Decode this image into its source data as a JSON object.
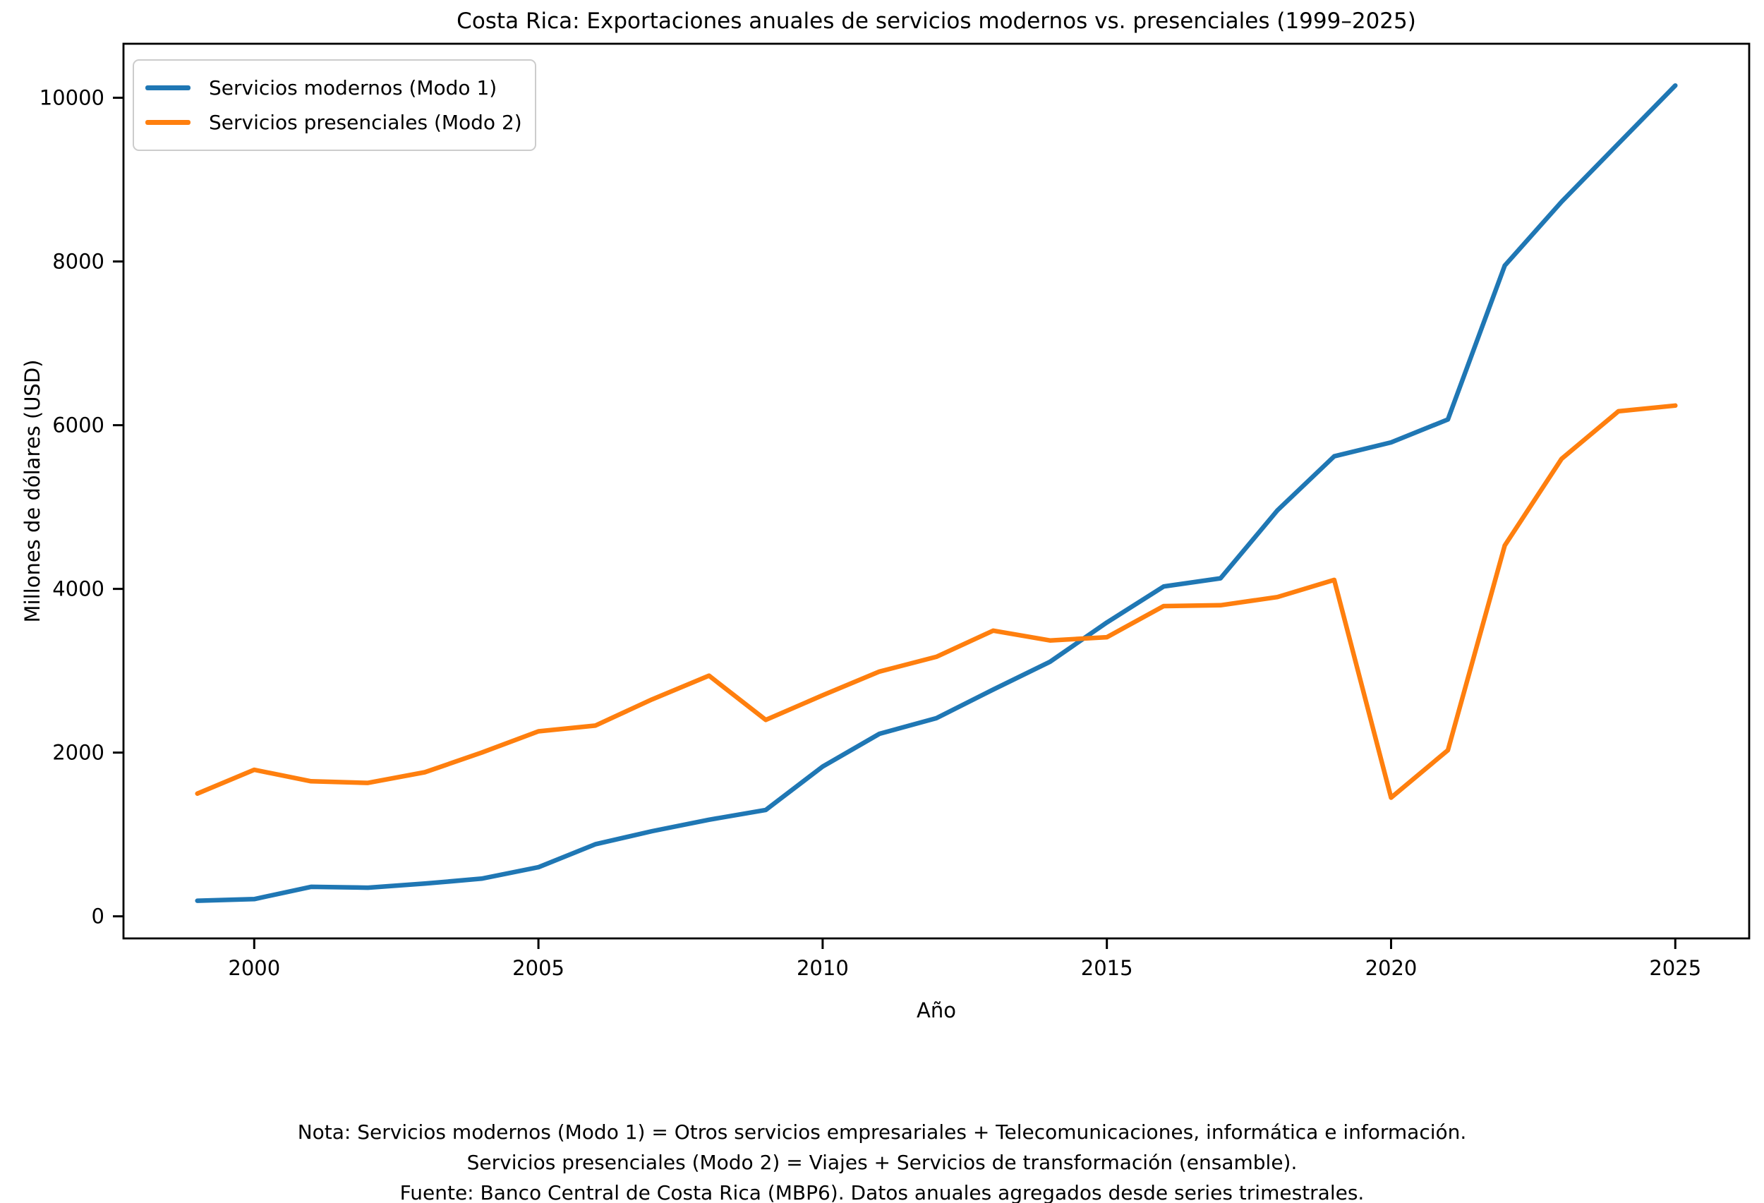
{
  "title": "Costa Rica: Exportaciones anuales de servicios modernos vs. presenciales (1999–2025)",
  "axes": {
    "xlabel": "Año",
    "ylabel": "Millones de dólares (USD)",
    "x_ticks": [
      2000,
      2005,
      2010,
      2015,
      2020,
      2025
    ],
    "y_ticks": [
      0,
      2000,
      4000,
      6000,
      8000,
      10000
    ]
  },
  "legend": {
    "position": "upper-left",
    "items": [
      {
        "label": "Servicios modernos (Modo 1)",
        "color": "#1f77b4"
      },
      {
        "label": "Servicios presenciales (Modo 2)",
        "color": "#ff7f0e"
      }
    ]
  },
  "chart_data": {
    "type": "line",
    "title": "Costa Rica: Exportaciones anuales de servicios modernos vs. presenciales (1999–2025)",
    "xlabel": "Año",
    "ylabel": "Millones de dólares (USD)",
    "x": [
      1999,
      2000,
      2001,
      2002,
      2003,
      2004,
      2005,
      2006,
      2007,
      2008,
      2009,
      2010,
      2011,
      2012,
      2013,
      2014,
      2015,
      2016,
      2017,
      2018,
      2019,
      2020,
      2021,
      2022,
      2023,
      2024,
      2025
    ],
    "series": [
      {
        "name": "Servicios modernos (Modo 1)",
        "color": "#1f77b4",
        "values": [
          190,
          210,
          360,
          350,
          400,
          460,
          600,
          880,
          1040,
          1180,
          1300,
          1830,
          2230,
          2420,
          2770,
          3110,
          3590,
          4030,
          4130,
          4960,
          5620,
          5790,
          6070,
          7950,
          8730,
          9440,
          10150
        ]
      },
      {
        "name": "Servicios presenciales (Modo 2)",
        "color": "#ff7f0e",
        "values": [
          1500,
          1790,
          1650,
          1630,
          1760,
          2000,
          2260,
          2330,
          2650,
          2940,
          2400,
          2700,
          2990,
          3170,
          3490,
          3370,
          3410,
          3790,
          3800,
          3900,
          4110,
          1450,
          2030,
          4530,
          5590,
          6170,
          6240
        ]
      }
    ],
    "xlim": [
      1997.7,
      2026.3
    ],
    "ylim": [
      -270,
      10660
    ],
    "grid": false,
    "legend_position": "upper left"
  },
  "footnote": {
    "lines": [
      "Nota: Servicios modernos (Modo 1) = Otros servicios empresariales + Telecomunicaciones, informática e información.",
      "Servicios presenciales (Modo 2) = Viajes + Servicios de transformación (ensamble).",
      "Fuente: Banco Central de Costa Rica (MBP6). Datos anuales agregados desde series trimestrales."
    ]
  }
}
